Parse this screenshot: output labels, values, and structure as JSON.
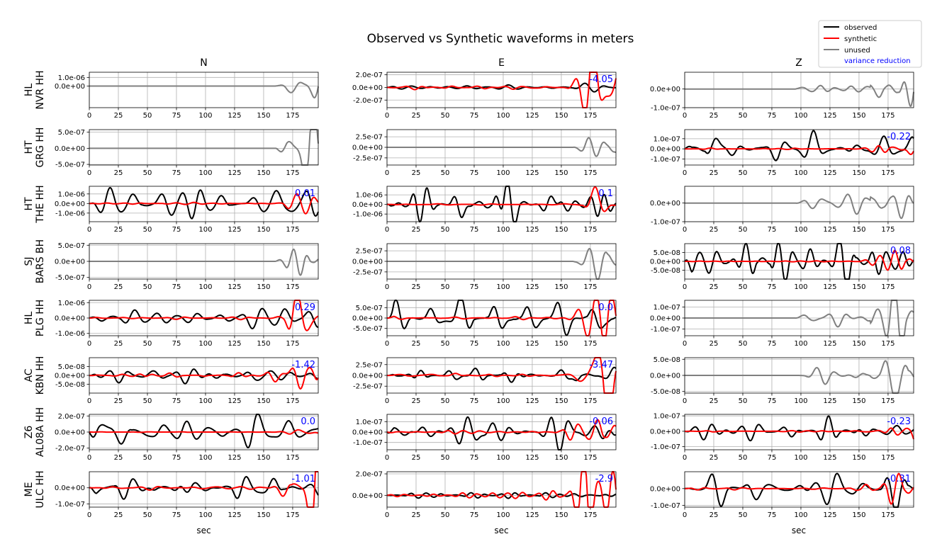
{
  "chart_data": {
    "type": "line",
    "title": "Observed vs Synthetic waveforms in meters",
    "column_titles": [
      "N",
      "E",
      "Z"
    ],
    "xlabel": "sec",
    "xlim": [
      0,
      197
    ],
    "x_ticks": [
      "0",
      "25",
      "50",
      "75",
      "100",
      "125",
      "150",
      "175"
    ],
    "grid": true,
    "legend": {
      "placement": "top-right",
      "entries": [
        {
          "label": "observed",
          "color": "#000000",
          "style": "line"
        },
        {
          "label": "synthetic",
          "color": "#ff0000",
          "style": "line"
        },
        {
          "label": "unused",
          "color": "#808080",
          "style": "line"
        },
        {
          "label": "variance reduction",
          "color": "#0000ff",
          "style": "text"
        }
      ]
    },
    "rows": [
      {
        "label_top": "HL",
        "label_bottom": "NVR HH",
        "panels": [
          {
            "used": false,
            "ylim": [
              -2.5e-06,
              1.6e-06
            ],
            "yticks": [
              {
                "v": 1e-06,
                "t": "1.0e-06"
              },
              {
                "v": 0,
                "t": "0.0e+00"
              }
            ],
            "vr": "",
            "onset": 160,
            "amp": 1.4e-06
          },
          {
            "used": true,
            "ylim": [
              -3.2e-07,
              2.4e-07
            ],
            "yticks": [
              {
                "v": 2e-07,
                "t": "2.0e-07"
              },
              {
                "v": 0,
                "t": "0.0e+00"
              },
              {
                "v": -2e-07,
                "t": "-2.0e-07"
              }
            ],
            "vr": "-4.05",
            "obs_amp": 6e-08,
            "syn_amp": 2.2e-07
          },
          {
            "used": false,
            "ylim": [
              -1e-07,
              9e-08
            ],
            "yticks": [
              {
                "v": 0,
                "t": "0.0e+00"
              },
              {
                "v": -1e-07,
                "t": "-1.0e-07"
              }
            ],
            "vr": "",
            "onset": 95,
            "amp": 8e-08
          }
        ]
      },
      {
        "label_top": "HT",
        "label_bottom": "GRG HH",
        "panels": [
          {
            "used": false,
            "ylim": [
              -5.2e-07,
              5.8e-07
            ],
            "yticks": [
              {
                "v": 5e-07,
                "t": "5.0e-07"
              },
              {
                "v": 0,
                "t": "0.0e+00"
              },
              {
                "v": -5e-07,
                "t": "-5.0e-07"
              }
            ],
            "vr": "",
            "onset": 160,
            "amp": 5e-07
          },
          {
            "used": false,
            "ylim": [
              -4.2e-07,
              4.2e-07
            ],
            "yticks": [
              {
                "v": 2.5e-07,
                "t": "2.5e-07"
              },
              {
                "v": 0,
                "t": "0.0e+00"
              },
              {
                "v": -2.5e-07,
                "t": "-2.5e-07"
              }
            ],
            "vr": "",
            "onset": 160,
            "amp": 3.8e-07
          },
          {
            "used": true,
            "ylim": [
              -1.6e-07,
              1.9e-07
            ],
            "yticks": [
              {
                "v": 1e-07,
                "t": "1.0e-07"
              },
              {
                "v": 0,
                "t": "0.0e+00"
              },
              {
                "v": -1e-07,
                "t": "-1.0e-07"
              }
            ],
            "vr": "-0.22",
            "obs_amp": 1.2e-07,
            "syn_amp": 3.5e-08
          }
        ]
      },
      {
        "label_top": "HT",
        "label_bottom": "THE HH",
        "panels": [
          {
            "used": true,
            "ylim": [
              -1.9e-06,
              1.8e-06
            ],
            "yticks": [
              {
                "v": 1e-06,
                "t": "1.0e-06"
              },
              {
                "v": 0,
                "t": "0.0e+00"
              },
              {
                "v": -1e-06,
                "t": "-1.0e-06"
              }
            ],
            "vr": "0.01",
            "obs_amp": 1.4e-06,
            "syn_amp": 7e-07
          },
          {
            "used": true,
            "ylim": [
              -1.8e-06,
              1.9e-06
            ],
            "yticks": [
              {
                "v": 1e-06,
                "t": "1.0e-06"
              },
              {
                "v": 0,
                "t": "0.0e+00"
              },
              {
                "v": -1e-06,
                "t": "-1.0e-06"
              }
            ],
            "vr": "0.1",
            "obs_amp": 1.5e-06,
            "syn_amp": 6e-07
          },
          {
            "used": false,
            "ylim": [
              -1e-07,
              9e-08
            ],
            "yticks": [
              {
                "v": 0,
                "t": "0.0e+00"
              },
              {
                "v": -1e-07,
                "t": "-1.0e-07"
              }
            ],
            "vr": "",
            "onset": 95,
            "amp": 8e-08
          }
        ]
      },
      {
        "label_top": "SJ",
        "label_bottom": "BARS BH",
        "panels": [
          {
            "used": false,
            "ylim": [
              -5.5e-07,
              5.5e-07
            ],
            "yticks": [
              {
                "v": 5e-07,
                "t": "5.0e-07"
              },
              {
                "v": 0,
                "t": "0.0e+00"
              },
              {
                "v": -5e-07,
                "t": "-5.0e-07"
              }
            ],
            "vr": "",
            "onset": 160,
            "amp": 5e-07
          },
          {
            "used": false,
            "ylim": [
              -4.2e-07,
              4.2e-07
            ],
            "yticks": [
              {
                "v": 2.5e-07,
                "t": "2.5e-07"
              },
              {
                "v": 0,
                "t": "0.0e+00"
              },
              {
                "v": -2.5e-07,
                "t": "-2.5e-07"
              }
            ],
            "vr": "",
            "onset": 160,
            "amp": 3.8e-07
          },
          {
            "used": true,
            "ylim": [
              -1e-07,
              1e-07
            ],
            "yticks": [
              {
                "v": 5e-08,
                "t": "5.0e-08"
              },
              {
                "v": 0,
                "t": "0.0e+00"
              },
              {
                "v": -5e-08,
                "t": "-5.0e-08"
              }
            ],
            "vr": "0.08",
            "obs_amp": 9e-08,
            "syn_amp": 3.5e-08
          }
        ]
      },
      {
        "label_top": "HL",
        "label_bottom": "PLG HH",
        "panels": [
          {
            "used": true,
            "ylim": [
              -1.15e-06,
              1.15e-06
            ],
            "yticks": [
              {
                "v": 1e-06,
                "t": "1.0e-06"
              },
              {
                "v": 0,
                "t": "0.0e+00"
              },
              {
                "v": -1e-06,
                "t": "-1.0e-06"
              }
            ],
            "vr": "0.29",
            "obs_amp": 1.1e-06,
            "syn_amp": 5e-07
          },
          {
            "used": true,
            "ylim": [
              -8.5e-07,
              8.5e-07
            ],
            "yticks": [
              {
                "v": 5e-07,
                "t": "5.0e-07"
              },
              {
                "v": 0,
                "t": "0.0e+00"
              },
              {
                "v": -5e-07,
                "t": "-5.0e-07"
              }
            ],
            "vr": "0.0",
            "obs_amp": 7e-07,
            "syn_amp": 5e-07
          },
          {
            "used": false,
            "ylim": [
              -1.6e-07,
              1.6e-07
            ],
            "yticks": [
              {
                "v": 1e-07,
                "t": "1.0e-07"
              },
              {
                "v": 0,
                "t": "0.0e+00"
              },
              {
                "v": -1e-07,
                "t": "-1.0e-07"
              }
            ],
            "vr": "",
            "onset": 95,
            "amp": 1.5e-07
          }
        ]
      },
      {
        "label_top": "AC",
        "label_bottom": "KBN HH",
        "panels": [
          {
            "used": true,
            "ylim": [
              -1e-07,
              1e-07
            ],
            "yticks": [
              {
                "v": 5e-08,
                "t": "5.0e-08"
              },
              {
                "v": 0,
                "t": "0.0e+00"
              },
              {
                "v": -5e-08,
                "t": "-5.0e-08"
              }
            ],
            "vr": "-1.42",
            "obs_amp": 3.5e-08,
            "syn_amp": 9e-08
          },
          {
            "used": true,
            "ylim": [
              -4.1e-07,
              4.1e-07
            ],
            "yticks": [
              {
                "v": 2.5e-07,
                "t": "2.5e-07"
              },
              {
                "v": 0,
                "t": "0.0e+00"
              },
              {
                "v": -2.5e-07,
                "t": "-2.5e-07"
              }
            ],
            "vr": "-3.47",
            "obs_amp": 1.1e-07,
            "syn_amp": 3.6e-07
          },
          {
            "used": false,
            "ylim": [
              -5.5e-08,
              5.5e-08
            ],
            "yticks": [
              {
                "v": 5e-08,
                "t": "5.0e-08"
              },
              {
                "v": 0,
                "t": "0.0e+00"
              },
              {
                "v": -5e-08,
                "t": "-5.0e-08"
              }
            ],
            "vr": "",
            "onset": 95,
            "amp": 5e-08
          }
        ]
      },
      {
        "label_top": "Z6",
        "label_bottom": "AL08A HH",
        "panels": [
          {
            "used": true,
            "ylim": [
              -2.2e-07,
              2.2e-07
            ],
            "yticks": [
              {
                "v": 2e-07,
                "t": "2.0e-07"
              },
              {
                "v": 0,
                "t": "0.0e+00"
              },
              {
                "v": -2e-07,
                "t": "-2.0e-07"
              }
            ],
            "vr": "0.0",
            "obs_amp": 2e-07,
            "syn_amp": 2e-08
          },
          {
            "used": true,
            "ylim": [
              -1.7e-07,
              1.7e-07
            ],
            "yticks": [
              {
                "v": 1e-07,
                "t": "1.0e-07"
              },
              {
                "v": 0,
                "t": "0.0e+00"
              },
              {
                "v": -1e-07,
                "t": "-1.0e-07"
              }
            ],
            "vr": "-0.06",
            "obs_amp": 1.3e-07,
            "syn_amp": 1e-07
          },
          {
            "used": true,
            "ylim": [
              -1.2e-07,
              1.1e-07
            ],
            "yticks": [
              {
                "v": 1e-07,
                "t": "1.0e-07"
              },
              {
                "v": 0,
                "t": "0.0e+00"
              },
              {
                "v": -1e-07,
                "t": "-1.0e-07"
              }
            ],
            "vr": "-0.23",
            "obs_amp": 9e-08,
            "syn_amp": 4e-08
          }
        ]
      },
      {
        "label_top": "ME",
        "label_bottom": "ULC HH",
        "panels": [
          {
            "used": true,
            "ylim": [
              -1.2e-07,
              1e-07
            ],
            "yticks": [
              {
                "v": 0,
                "t": "0.0e+00"
              },
              {
                "v": -1e-07,
                "t": "-1.0e-07"
              }
            ],
            "vr": "-1.01",
            "obs_amp": 6e-08,
            "syn_amp": 1e-07
          },
          {
            "used": true,
            "ylim": [
              -1.1e-07,
              2.2e-07
            ],
            "yticks": [
              {
                "v": 2e-07,
                "t": "2.0e-07"
              },
              {
                "v": 0,
                "t": "0.0e+00"
              }
            ],
            "vr": "-2.9",
            "obs_amp": 3e-08,
            "syn_amp": 2e-07
          },
          {
            "used": true,
            "ylim": [
              -1.1e-07,
              1e-07
            ],
            "yticks": [
              {
                "v": 0,
                "t": "0.0e+00"
              },
              {
                "v": -1e-07,
                "t": "-1.0e-07"
              }
            ],
            "vr": "-0.31",
            "obs_amp": 9e-08,
            "syn_amp": 6e-08
          }
        ]
      }
    ]
  }
}
